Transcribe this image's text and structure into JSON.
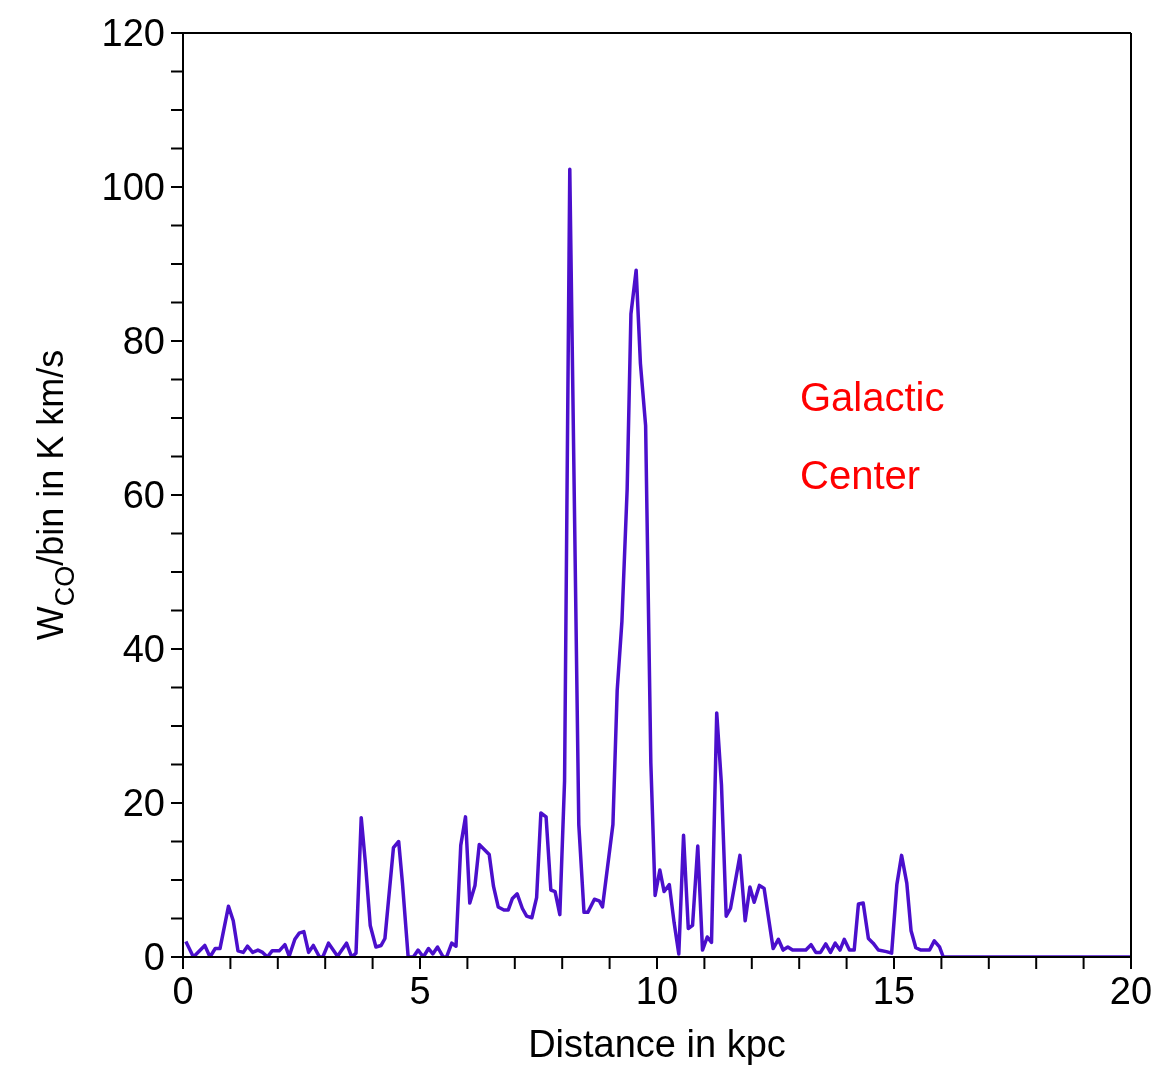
{
  "chart_data": {
    "type": "line",
    "xlabel": "Distance in kpc",
    "ylabel": "W$_{CO}$/bin in K km/s",
    "xlim": [
      0,
      20
    ],
    "xticks": [
      0,
      {
        "value": 1,
        "label": null
      },
      {
        "value": 2,
        "label": null
      },
      {
        "value": 3,
        "label": null
      },
      {
        "value": 4,
        "label": null
      },
      5,
      {
        "value": 6,
        "label": null
      },
      {
        "value": 7,
        "label": null
      },
      {
        "value": 8,
        "label": null
      },
      {
        "value": 9,
        "label": null
      },
      10,
      {
        "value": 11,
        "label": null
      },
      {
        "value": 12,
        "label": null
      },
      {
        "value": 13,
        "label": null
      },
      {
        "value": 14,
        "label": null
      },
      15,
      {
        "value": 16,
        "label": null
      },
      {
        "value": 17,
        "label": null
      },
      {
        "value": 18,
        "label": null
      },
      {
        "value": 19,
        "label": null
      },
      20
    ],
    "ylim": [
      0,
      120
    ],
    "yticks": [
      0,
      {
        "value": 5,
        "label": null
      },
      {
        "value": 10,
        "label": null
      },
      {
        "value": 15,
        "label": null
      },
      20,
      {
        "value": 25,
        "label": null
      },
      {
        "value": 30,
        "label": null
      },
      {
        "value": 35,
        "label": null
      },
      40,
      {
        "value": 45,
        "label": null
      },
      {
        "value": 50,
        "label": null
      },
      {
        "value": 55,
        "label": null
      },
      60,
      {
        "value": 65,
        "label": null
      },
      {
        "value": 70,
        "label": null
      },
      {
        "value": 75,
        "label": null
      },
      80,
      {
        "value": 85,
        "label": null
      },
      {
        "value": 90,
        "label": null
      },
      {
        "value": 95,
        "label": null
      },
      100,
      {
        "value": 105,
        "label": null
      },
      {
        "value": 110,
        "label": null
      },
      {
        "value": 115,
        "label": null
      },
      120
    ],
    "grid": false,
    "legend": false,
    "marker": "none",
    "line_style": "solid",
    "annotations": [
      "Galactic Center"
    ],
    "series": [
      {
        "color": "#4b0fcc",
        "x": [
          0.06,
          0.22,
          0.46,
          0.57,
          0.68,
          0.78,
          0.96,
          1.06,
          1.16,
          1.27,
          1.36,
          1.47,
          1.58,
          1.68,
          1.78,
          1.88,
          2.03,
          2.15,
          2.24,
          2.36,
          2.45,
          2.55,
          2.65,
          2.75,
          2.88,
          2.95,
          3.07,
          3.26,
          3.45,
          3.56,
          3.65,
          3.76,
          3.85,
          3.95,
          4.07,
          4.18,
          4.26,
          4.44,
          4.55,
          4.63,
          4.75,
          4.86,
          4.96,
          5.07,
          5.18,
          5.27,
          5.37,
          5.49,
          5.56,
          5.67,
          5.76,
          5.86,
          5.96,
          6.05,
          6.16,
          6.25,
          6.46,
          6.55,
          6.65,
          6.77,
          6.86,
          6.95,
          7.05,
          7.16,
          7.25,
          7.36,
          7.46,
          7.55,
          7.66,
          7.76,
          7.85,
          7.95,
          8.05,
          8.16,
          8.35,
          8.46,
          8.54,
          8.68,
          8.78,
          8.85,
          9.07,
          9.16,
          9.26,
          9.37,
          9.45,
          9.56,
          9.65,
          9.76,
          9.87,
          9.96,
          10.06,
          10.15,
          10.26,
          10.36,
          10.46,
          10.56,
          10.66,
          10.75,
          10.86,
          10.96,
          11.06,
          11.15,
          11.26,
          11.36,
          11.46,
          11.55,
          11.75,
          11.86,
          11.96,
          12.05,
          12.16,
          12.26,
          12.45,
          12.56,
          12.66,
          12.76,
          12.86,
          12.97,
          13.14,
          13.25,
          13.35,
          13.45,
          13.56,
          13.66,
          13.76,
          13.86,
          13.95,
          14.06,
          14.16,
          14.25,
          14.35,
          14.46,
          14.56,
          14.67,
          14.84,
          14.95,
          15.06,
          15.16,
          15.27,
          15.36,
          15.46,
          15.57,
          15.75,
          15.85,
          15.96,
          16.04,
          17,
          18,
          19,
          20
        ],
        "values": [
          2.0,
          0,
          1.5,
          0,
          1.1,
          1.1,
          6.6,
          4.7,
          0.8,
          0.6,
          1.4,
          0.6,
          0.9,
          0.6,
          0,
          0.8,
          0.8,
          1.6,
          0.1,
          2.3,
          3.1,
          3.3,
          0.6,
          1.5,
          0,
          0,
          1.8,
          0.1,
          1.8,
          0,
          0.5,
          18.1,
          12.1,
          4.1,
          1.3,
          1.5,
          2.4,
          14.2,
          15.0,
          9.6,
          0,
          0,
          0.9,
          0,
          1.1,
          0.4,
          1.3,
          0,
          0,
          1.8,
          1.4,
          14.5,
          18.2,
          7.0,
          9.3,
          14.6,
          13.3,
          9.2,
          6.5,
          6.1,
          6.1,
          7.6,
          8.2,
          6.3,
          5.3,
          5.1,
          7.7,
          18.7,
          18.2,
          8.7,
          8.5,
          5.5,
          22.9,
          102.3,
          17.2,
          5.8,
          5.8,
          7.5,
          7.3,
          6.5,
          17.2,
          34.6,
          43.6,
          60.7,
          83.5,
          89.2,
          77.1,
          69.0,
          25.2,
          8.0,
          11.3,
          8.5,
          9.4,
          4.5,
          0.4,
          15.8,
          3.7,
          4.1,
          14.4,
          0.9,
          2.6,
          1.9,
          31.7,
          22.4,
          5.3,
          6.3,
          13.2,
          4.7,
          9.1,
          7.1,
          9.3,
          8.9,
          1.1,
          2.3,
          0.9,
          1.3,
          0.9,
          0.9,
          0.9,
          1.6,
          0.6,
          0.6,
          1.7,
          0.6,
          1.8,
          0.9,
          2.3,
          0.9,
          0.9,
          6.9,
          7.0,
          2.4,
          1.8,
          0.9,
          0.7,
          0.5,
          9.4,
          13.2,
          9.6,
          3.4,
          1.2,
          0.9,
          0.9,
          2.1,
          1.3,
          0,
          0,
          0,
          0,
          0
        ]
      }
    ]
  }
}
